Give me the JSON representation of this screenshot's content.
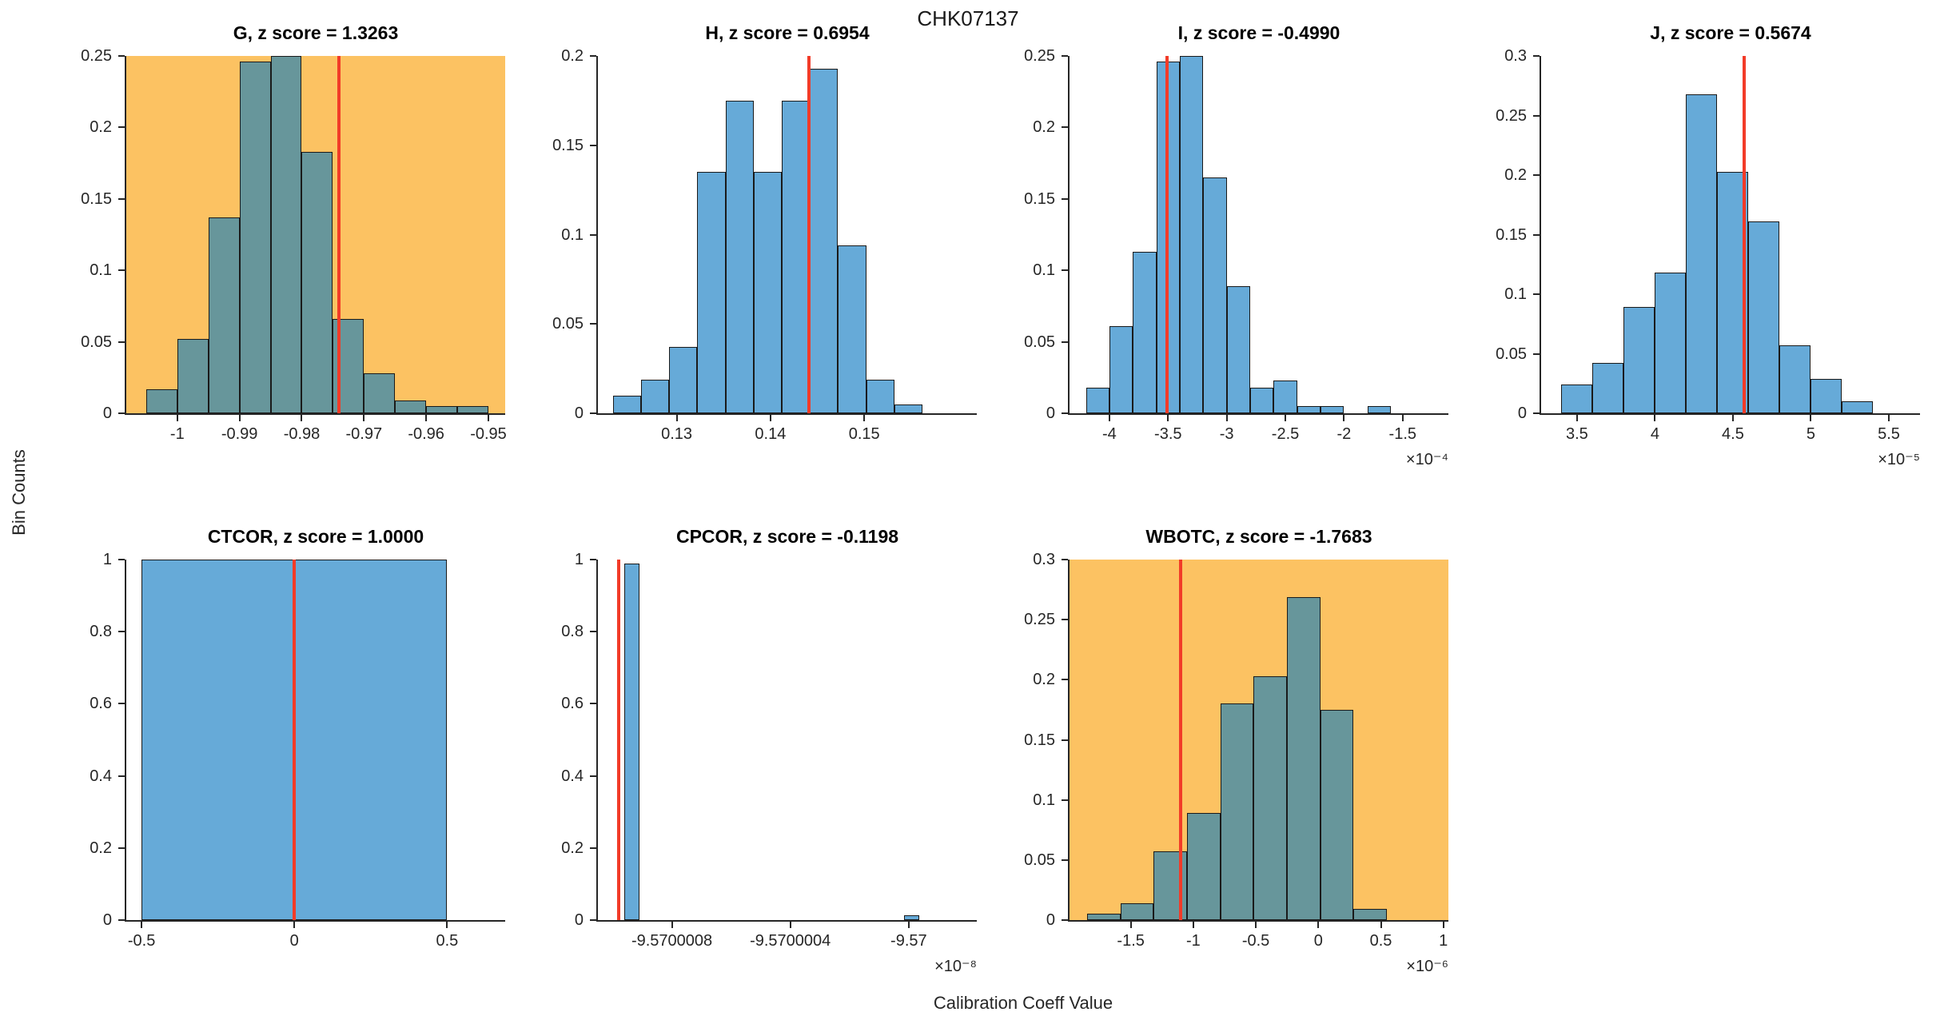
{
  "figure": {
    "title": "CHK07137",
    "xlabel": "Calibration Coeff Value",
    "ylabel": "Bin Counts"
  },
  "colors": {
    "highlight_bg": "#FCC262",
    "plain_bg": "#FFFFFF",
    "bar_on_highlight": "#67969B",
    "bar_on_plain": "#66AAD8",
    "bar_edge": "#1A1A1A",
    "red_line": "#F23B28",
    "axis": "#262626",
    "tick_text": "#262626",
    "title_text": "#000000"
  },
  "chart_data": [
    {
      "type": "bar",
      "name": "G",
      "title": "G, z score = 1.3263",
      "coefficient": "G",
      "z_score": 1.3263,
      "row": 0,
      "col": 0,
      "highlighted": true,
      "grid": false,
      "legend": null,
      "xlim": [
        -1.0082,
        -0.9473
      ],
      "ylim": [
        0,
        0.25
      ],
      "xticks": [
        {
          "v": -1,
          "label": "-1"
        },
        {
          "v": -0.99,
          "label": "-0.99"
        },
        {
          "v": -0.98,
          "label": "-0.98"
        },
        {
          "v": -0.97,
          "label": "-0.97"
        },
        {
          "v": -0.96,
          "label": "-0.96"
        },
        {
          "v": -0.95,
          "label": "-0.95"
        }
      ],
      "yticks": [
        {
          "v": 0,
          "label": "0"
        },
        {
          "v": 0.05,
          "label": "0.05"
        },
        {
          "v": 0.1,
          "label": "0.1"
        },
        {
          "v": 0.15,
          "label": "0.15"
        },
        {
          "v": 0.2,
          "label": "0.2"
        },
        {
          "v": 0.25,
          "label": "0.25"
        }
      ],
      "bars": [
        [
          -1.005,
          -1.0,
          0.017
        ],
        [
          -1.0,
          -0.995,
          0.052
        ],
        [
          -0.995,
          -0.99,
          0.137
        ],
        [
          -0.99,
          -0.985,
          0.246
        ],
        [
          -0.985,
          -0.98,
          0.25
        ],
        [
          -0.98,
          -0.975,
          0.183
        ],
        [
          -0.975,
          -0.97,
          0.066
        ],
        [
          -0.97,
          -0.965,
          0.028
        ],
        [
          -0.965,
          -0.96,
          0.009
        ],
        [
          -0.96,
          -0.955,
          0.005
        ],
        [
          -0.955,
          -0.95,
          0.005
        ]
      ],
      "red_line_x": -0.974,
      "x_exponent": null
    },
    {
      "type": "bar",
      "name": "H",
      "title": "H, z score = 0.6954",
      "coefficient": "H",
      "z_score": 0.6954,
      "row": 0,
      "col": 1,
      "highlighted": false,
      "grid": false,
      "legend": null,
      "xlim": [
        0.1216,
        0.162
      ],
      "ylim": [
        0,
        0.2
      ],
      "xticks": [
        {
          "v": 0.13,
          "label": "0.13"
        },
        {
          "v": 0.14,
          "label": "0.14"
        },
        {
          "v": 0.15,
          "label": "0.15"
        }
      ],
      "yticks": [
        {
          "v": 0,
          "label": "0"
        },
        {
          "v": 0.05,
          "label": "0.05"
        },
        {
          "v": 0.1,
          "label": "0.1"
        },
        {
          "v": 0.15,
          "label": "0.15"
        },
        {
          "v": 0.2,
          "label": "0.2"
        }
      ],
      "bars": [
        [
          0.1232,
          0.1262,
          0.01
        ],
        [
          0.1262,
          0.1292,
          0.019
        ],
        [
          0.1292,
          0.1322,
          0.037
        ],
        [
          0.1322,
          0.1352,
          0.135
        ],
        [
          0.1352,
          0.1382,
          0.175
        ],
        [
          0.1382,
          0.1412,
          0.135
        ],
        [
          0.1412,
          0.1442,
          0.175
        ],
        [
          0.1442,
          0.1472,
          0.193
        ],
        [
          0.1472,
          0.1502,
          0.094
        ],
        [
          0.1502,
          0.1532,
          0.019
        ],
        [
          0.1532,
          0.1562,
          0.005
        ]
      ],
      "red_line_x": 0.1441,
      "x_exponent": null
    },
    {
      "type": "bar",
      "name": "I",
      "title": "I, z score = -0.4990",
      "coefficient": "I",
      "z_score": -0.499,
      "row": 0,
      "col": 2,
      "highlighted": false,
      "grid": false,
      "legend": null,
      "xlim": [
        -4.34,
        -1.11
      ],
      "ylim": [
        0,
        0.25
      ],
      "xticks": [
        {
          "v": -4,
          "label": "-4"
        },
        {
          "v": -3.5,
          "label": "-3.5"
        },
        {
          "v": -3,
          "label": "-3"
        },
        {
          "v": -2.5,
          "label": "-2.5"
        },
        {
          "v": -2,
          "label": "-2"
        },
        {
          "v": -1.5,
          "label": "-1.5"
        }
      ],
      "yticks": [
        {
          "v": 0,
          "label": "0"
        },
        {
          "v": 0.05,
          "label": "0.05"
        },
        {
          "v": 0.1,
          "label": "0.1"
        },
        {
          "v": 0.15,
          "label": "0.15"
        },
        {
          "v": 0.2,
          "label": "0.2"
        },
        {
          "v": 0.25,
          "label": "0.25"
        }
      ],
      "bars": [
        [
          -4.2,
          -4.0,
          0.018
        ],
        [
          -4.0,
          -3.8,
          0.061
        ],
        [
          -3.8,
          -3.6,
          0.113
        ],
        [
          -3.6,
          -3.4,
          0.246
        ],
        [
          -3.4,
          -3.2,
          0.25
        ],
        [
          -3.2,
          -3.0,
          0.165
        ],
        [
          -3.0,
          -2.8,
          0.089
        ],
        [
          -2.8,
          -2.6,
          0.018
        ],
        [
          -2.6,
          -2.4,
          0.023
        ],
        [
          -2.4,
          -2.2,
          0.005
        ],
        [
          -2.2,
          -2.0,
          0.005
        ],
        [
          -1.8,
          -1.6,
          0.005
        ]
      ],
      "red_line_x": -3.51,
      "x_exponent": "×10⁻⁴"
    },
    {
      "type": "bar",
      "name": "J",
      "title": "J, z score = 0.5674",
      "coefficient": "J",
      "z_score": 0.5674,
      "row": 0,
      "col": 3,
      "highlighted": false,
      "grid": false,
      "legend": null,
      "xlim": [
        3.27,
        5.7
      ],
      "ylim": [
        0,
        0.3
      ],
      "xticks": [
        {
          "v": 3.5,
          "label": "3.5"
        },
        {
          "v": 4,
          "label": "4"
        },
        {
          "v": 4.5,
          "label": "4.5"
        },
        {
          "v": 5,
          "label": "5"
        },
        {
          "v": 5.5,
          "label": "5.5"
        }
      ],
      "yticks": [
        {
          "v": 0,
          "label": "0"
        },
        {
          "v": 0.05,
          "label": "0.05"
        },
        {
          "v": 0.1,
          "label": "0.1"
        },
        {
          "v": 0.15,
          "label": "0.15"
        },
        {
          "v": 0.2,
          "label": "0.2"
        },
        {
          "v": 0.25,
          "label": "0.25"
        },
        {
          "v": 0.3,
          "label": "0.3"
        }
      ],
      "bars": [
        [
          3.4,
          3.6,
          0.024
        ],
        [
          3.6,
          3.8,
          0.042
        ],
        [
          3.8,
          4.0,
          0.089
        ],
        [
          4.0,
          4.2,
          0.118
        ],
        [
          4.2,
          4.4,
          0.268
        ],
        [
          4.4,
          4.6,
          0.203
        ],
        [
          4.6,
          4.8,
          0.161
        ],
        [
          4.8,
          5.0,
          0.057
        ],
        [
          5.0,
          5.2,
          0.029
        ],
        [
          5.2,
          5.4,
          0.01
        ]
      ],
      "red_line_x": 4.57,
      "x_exponent": "×10⁻⁵"
    },
    {
      "type": "bar",
      "name": "CTCOR",
      "title": "CTCOR, z score = 1.0000",
      "coefficient": "CTCOR",
      "z_score": 1.0,
      "row": 1,
      "col": 0,
      "highlighted": false,
      "grid": false,
      "legend": null,
      "xlim": [
        -0.55,
        0.69
      ],
      "ylim": [
        0,
        1
      ],
      "xticks": [
        {
          "v": -0.5,
          "label": "-0.5"
        },
        {
          "v": 0,
          "label": "0"
        },
        {
          "v": 0.5,
          "label": "0.5"
        }
      ],
      "yticks": [
        {
          "v": 0,
          "label": "0"
        },
        {
          "v": 0.2,
          "label": "0.2"
        },
        {
          "v": 0.4,
          "label": "0.4"
        },
        {
          "v": 0.6,
          "label": "0.6"
        },
        {
          "v": 0.8,
          "label": "0.8"
        },
        {
          "v": 1,
          "label": "1"
        }
      ],
      "bars": [
        [
          -0.5,
          0.5,
          1.0
        ]
      ],
      "red_line_x": 0,
      "x_exponent": null
    },
    {
      "type": "bar",
      "name": "CPCOR",
      "title": "CPCOR, z score = -0.1198",
      "coefficient": "CPCOR",
      "z_score": -0.1198,
      "row": 1,
      "col": 1,
      "highlighted": false,
      "grid": false,
      "legend": null,
      "xlim": [
        -9.57000105,
        -9.56999977
      ],
      "ylim": [
        0,
        1
      ],
      "xticks": [
        {
          "v": -9.5700008,
          "label": "-9.5700008"
        },
        {
          "v": -9.5700004,
          "label": "-9.5700004"
        },
        {
          "v": -9.57,
          "label": "-9.57"
        }
      ],
      "yticks": [
        {
          "v": 0,
          "label": "0"
        },
        {
          "v": 0.2,
          "label": "0.2"
        },
        {
          "v": 0.4,
          "label": "0.4"
        },
        {
          "v": 0.6,
          "label": "0.6"
        },
        {
          "v": 0.8,
          "label": "0.8"
        },
        {
          "v": 1,
          "label": "1"
        }
      ],
      "bars": [
        [
          -9.57000096,
          -9.57000091,
          0.99
        ],
        [
          -9.570000015,
          -9.569999965,
          0.013
        ]
      ],
      "red_line_x": -9.57000098,
      "x_exponent": "×10⁻⁸"
    },
    {
      "type": "bar",
      "name": "WBOTC",
      "title": "WBOTC, z score = -1.7683",
      "coefficient": "WBOTC",
      "z_score": -1.7683,
      "row": 1,
      "col": 2,
      "highlighted": true,
      "grid": false,
      "legend": null,
      "xlim": [
        -1.99,
        1.04
      ],
      "ylim": [
        0,
        0.3
      ],
      "xticks": [
        {
          "v": -1.5,
          "label": "-1.5"
        },
        {
          "v": -1,
          "label": "-1"
        },
        {
          "v": -0.5,
          "label": "-0.5"
        },
        {
          "v": 0,
          "label": "0"
        },
        {
          "v": 0.5,
          "label": "0.5"
        },
        {
          "v": 1,
          "label": "1"
        }
      ],
      "yticks": [
        {
          "v": 0,
          "label": "0"
        },
        {
          "v": 0.05,
          "label": "0.05"
        },
        {
          "v": 0.1,
          "label": "0.1"
        },
        {
          "v": 0.15,
          "label": "0.15"
        },
        {
          "v": 0.2,
          "label": "0.2"
        },
        {
          "v": 0.25,
          "label": "0.25"
        },
        {
          "v": 0.3,
          "label": "0.3"
        }
      ],
      "bars": [
        [
          -1.85,
          -1.58,
          0.005
        ],
        [
          -1.58,
          -1.32,
          0.014
        ],
        [
          -1.32,
          -1.05,
          0.057
        ],
        [
          -1.05,
          -0.78,
          0.089
        ],
        [
          -0.78,
          -0.52,
          0.18
        ],
        [
          -0.52,
          -0.25,
          0.203
        ],
        [
          -0.25,
          0.02,
          0.269
        ],
        [
          0.02,
          0.28,
          0.175
        ],
        [
          0.28,
          0.55,
          0.009
        ]
      ],
      "red_line_x": -1.1,
      "x_exponent": "×10⁻⁶"
    }
  ]
}
